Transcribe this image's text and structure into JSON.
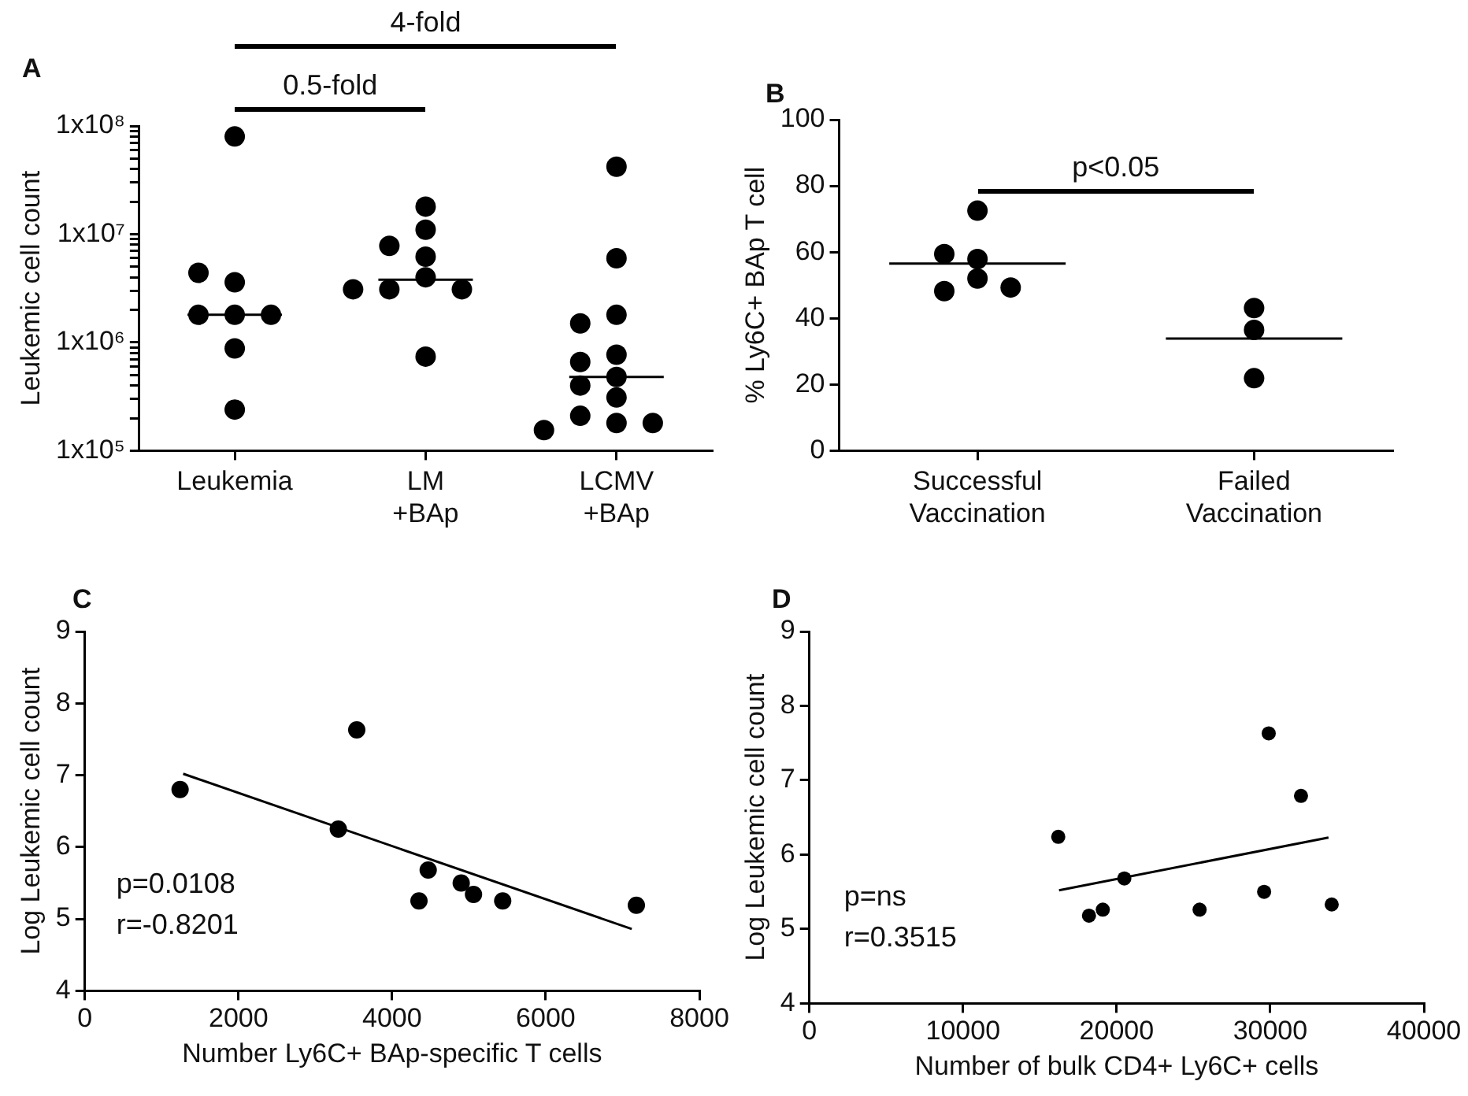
{
  "chart_data": [
    {
      "type": "scatter",
      "title": "A",
      "ylabel": "Leukemic cell count",
      "categories": [
        "Leukemia",
        "LM\n+BAp",
        "LCMV\n+BAp"
      ],
      "log": "y",
      "ylim": [
        100000,
        100000000
      ],
      "yticks": [
        {
          "value": 100000,
          "label": "1x10⁵"
        },
        {
          "value": 200000,
          "label": null
        },
        {
          "value": 300000,
          "label": null
        },
        {
          "value": 400000,
          "label": null
        },
        {
          "value": 500000,
          "label": null
        },
        {
          "value": 600000,
          "label": null
        },
        {
          "value": 700000,
          "label": null
        },
        {
          "value": 800000,
          "label": null
        },
        {
          "value": 900000,
          "label": null
        },
        {
          "value": 1000000,
          "label": "1x10⁶"
        },
        {
          "value": 2000000,
          "label": null
        },
        {
          "value": 3000000,
          "label": null
        },
        {
          "value": 4000000,
          "label": null
        },
        {
          "value": 5000000,
          "label": null
        },
        {
          "value": 6000000,
          "label": null
        },
        {
          "value": 7000000,
          "label": null
        },
        {
          "value": 8000000,
          "label": null
        },
        {
          "value": 9000000,
          "label": null
        },
        {
          "value": 10000000,
          "label": "1x10⁷"
        },
        {
          "value": 20000000,
          "label": null
        },
        {
          "value": 30000000,
          "label": null
        },
        {
          "value": 40000000,
          "label": null
        },
        {
          "value": 50000000,
          "label": null
        },
        {
          "value": 60000000,
          "label": null
        },
        {
          "value": 70000000,
          "label": null
        },
        {
          "value": 80000000,
          "label": null
        },
        {
          "value": 90000000,
          "label": null
        },
        {
          "value": 100000000,
          "label": "1x10⁸"
        }
      ],
      "marker": "circle",
      "annotations": [
        "4-fold",
        "0.5-fold"
      ],
      "series": [
        {
          "color": "#000000",
          "x": [
            "Leukemia",
            "Leukemia",
            "Leukemia",
            "Leukemia",
            "Leukemia",
            "Leukemia",
            "Leukemia",
            "Leukemia",
            "LM\n+BAp",
            "LM\n+BAp",
            "LM\n+BAp",
            "LM\n+BAp",
            "LM\n+BAp",
            "LM\n+BAp",
            "LM\n+BAp",
            "LM\n+BAp",
            "LM\n+BAp",
            "LCMV\n+BAp",
            "LCMV\n+BAp",
            "LCMV\n+BAp",
            "LCMV\n+BAp",
            "LCMV\n+BAp",
            "LCMV\n+BAp",
            "LCMV\n+BAp",
            "LCMV\n+BAp",
            "LCMV\n+BAp",
            "LCMV\n+BAp",
            "LCMV\n+BAp",
            "LCMV\n+BAp",
            "LCMV\n+BAp"
          ],
          "values": [
            80000000,
            1800000,
            1800000,
            1800000,
            3600000,
            4400000,
            880000,
            240000,
            18000000,
            11000000,
            7800000,
            4000000,
            6200000,
            3100000,
            3100000,
            3100000,
            740000,
            42000000,
            6000000,
            1800000,
            1500000,
            770000,
            660000,
            480000,
            400000,
            310000,
            210000,
            180000,
            180000,
            155000
          ]
        },
        {
          "type": "box",
          "color": "#000000",
          "boxes": [
            {
              "low": 1800000,
              "q1": 1800000,
              "median": 1800000,
              "q3": 1800000,
              "high": 1800000
            },
            {
              "low": 3800000,
              "q1": 3800000,
              "median": 3800000,
              "q3": 3800000,
              "high": 3800000
            },
            {
              "low": 480000,
              "q1": 480000,
              "median": 480000,
              "q3": 480000,
              "high": 480000
            }
          ]
        }
      ]
    },
    {
      "type": "scatter",
      "title": "B",
      "ylabel": "% Ly6C+ BAp T cell",
      "categories": [
        "Successful\nVaccination",
        "Failed\nVaccination"
      ],
      "ylim": [
        0,
        100
      ],
      "yticks": [
        0,
        20,
        40,
        60,
        80,
        100
      ],
      "marker": "circle",
      "annotations": [
        "p<0.05"
      ],
      "series": [
        {
          "color": "#000000",
          "x": [
            "Successful\nVaccination",
            "Successful\nVaccination",
            "Successful\nVaccination",
            "Successful\nVaccination",
            "Successful\nVaccination",
            "Successful\nVaccination",
            "Failed\nVaccination",
            "Failed\nVaccination",
            "Failed\nVaccination"
          ],
          "values": [
            72.5,
            57.9,
            59.4,
            52,
            48.2,
            49.3,
            36.5,
            43.1,
            21.9
          ]
        },
        {
          "type": "box",
          "color": "#000000",
          "boxes": [
            {
              "low": 56.5,
              "q1": 56.5,
              "median": 56.5,
              "q3": 56.5,
              "high": 56.5
            },
            {
              "low": 33.9,
              "q1": 33.9,
              "median": 33.9,
              "q3": 33.9,
              "high": 33.9
            }
          ]
        }
      ]
    },
    {
      "type": "scatter",
      "title": "C",
      "xlabel": "Number Ly6C+ BAp-specific T cells",
      "ylabel": "Log Leukemic cell count",
      "xlim": [
        0,
        8000
      ],
      "xticks": [
        0,
        2000,
        4000,
        6000,
        8000
      ],
      "ylim": [
        4,
        9
      ],
      "yticks": [
        4,
        5,
        6,
        7,
        8,
        9
      ],
      "marker": "circle",
      "annotations": [
        "p=0.0108",
        "r=-0.8201"
      ],
      "series": [
        {
          "color": "#000000",
          "x": [
            1240,
            3540,
            3300,
            4470,
            4350,
            4900,
            5060,
            5440,
            7180
          ],
          "values": [
            6.8,
            7.63,
            6.25,
            5.68,
            5.25,
            5.5,
            5.34,
            5.25,
            5.19
          ]
        },
        {
          "type": "line",
          "color": "#000000",
          "marker": "none",
          "x": [
            1280,
            7120
          ],
          "values": [
            7.02,
            4.86
          ]
        }
      ]
    },
    {
      "type": "scatter",
      "title": "D",
      "xlabel": "Number of bulk CD4+ Ly6C+ cells",
      "ylabel": "Log Leukemic cell count",
      "xlim": [
        0,
        40000
      ],
      "xticks": [
        0,
        10000,
        20000,
        30000,
        40000
      ],
      "ylim": [
        4,
        9
      ],
      "yticks": [
        4,
        5,
        6,
        7,
        8,
        9
      ],
      "marker": "circle",
      "annotations": [
        "p=ns",
        "r=0.3515"
      ],
      "series": [
        {
          "color": "#000000",
          "x": [
            16200,
            18200,
            19100,
            20500,
            25400,
            29900,
            29600,
            32000,
            34000
          ],
          "values": [
            6.24,
            5.18,
            5.26,
            5.68,
            5.26,
            7.63,
            5.5,
            6.79,
            5.33
          ]
        },
        {
          "type": "line",
          "color": "#000000",
          "marker": "none",
          "x": [
            16250,
            33790
          ],
          "values": [
            5.52,
            6.23
          ]
        }
      ]
    }
  ]
}
